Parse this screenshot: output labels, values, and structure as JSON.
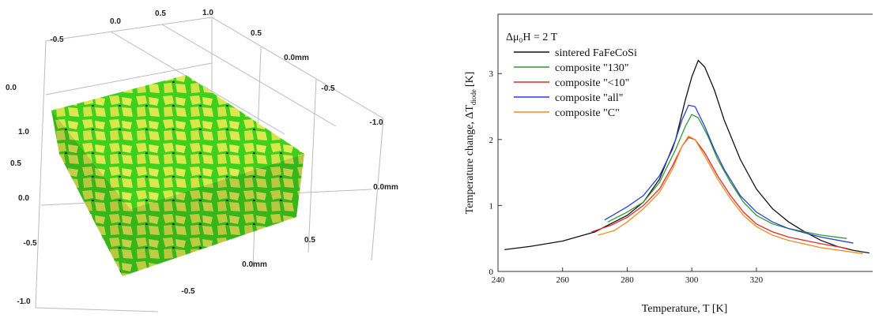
{
  "volume_render": {
    "tick_labels": [
      "-0.5",
      "0.0",
      "0.5",
      "1.0",
      "0.5",
      "0.0mm",
      "-0.5",
      "-1.0",
      "0.0",
      "1.0",
      "0.5",
      "0.0",
      "-0.5",
      "-1.0",
      "0.5",
      "0.0mm",
      "-0.5",
      "0.0mm"
    ]
  },
  "chart_data": {
    "type": "line",
    "annotation": "Δμ₀H = 2 T",
    "xlabel": "Temperature, T [K]",
    "ylabel": "Temperature change, ΔT",
    "ylabel_subscript": "diode",
    "ylabel_unit": "[K]",
    "xlim": [
      240,
      356
    ],
    "xticks": [
      240,
      260,
      280,
      300,
      320
    ],
    "ylim": [
      0,
      3.9
    ],
    "yticks": [
      0,
      1,
      2,
      3
    ],
    "series": [
      {
        "name": "sintered FaFeCoSi",
        "color": "#111111",
        "x": [
          242,
          250,
          260,
          270,
          280,
          285,
          290,
          295,
          298,
          300,
          302,
          304,
          307,
          310,
          315,
          320,
          325,
          330,
          335,
          340,
          345,
          350,
          355
        ],
        "values": [
          0.33,
          0.38,
          0.46,
          0.6,
          0.85,
          1.05,
          1.4,
          2.0,
          2.6,
          2.95,
          3.2,
          3.1,
          2.75,
          2.3,
          1.7,
          1.25,
          0.95,
          0.75,
          0.6,
          0.47,
          0.38,
          0.32,
          0.28
        ]
      },
      {
        "name": "composite \"130\"",
        "color": "#2e9a2e",
        "x": [
          274,
          280,
          285,
          290,
          295,
          298,
          300,
          302,
          305,
          308,
          312,
          316,
          320,
          325,
          330,
          340,
          348
        ],
        "values": [
          0.75,
          0.9,
          1.05,
          1.35,
          1.85,
          2.2,
          2.38,
          2.33,
          2.05,
          1.7,
          1.35,
          1.05,
          0.85,
          0.72,
          0.65,
          0.55,
          0.5
        ]
      },
      {
        "name": "composite \"<10\"",
        "color": "#e02a2a",
        "x": [
          269,
          275,
          280,
          285,
          290,
          294,
          297,
          299,
          301,
          304,
          308,
          312,
          316,
          320,
          325,
          330,
          340,
          348
        ],
        "values": [
          0.6,
          0.7,
          0.82,
          1.0,
          1.25,
          1.6,
          1.9,
          2.03,
          2.0,
          1.8,
          1.45,
          1.15,
          0.9,
          0.72,
          0.6,
          0.52,
          0.42,
          0.35
        ]
      },
      {
        "name": "composite \"all\"",
        "color": "#2a3fd8",
        "x": [
          273,
          280,
          285,
          290,
          294,
          297,
          299,
          301,
          304,
          307,
          310,
          315,
          320,
          325,
          330,
          340,
          350
        ],
        "values": [
          0.78,
          0.98,
          1.15,
          1.45,
          1.85,
          2.3,
          2.52,
          2.5,
          2.2,
          1.85,
          1.55,
          1.15,
          0.9,
          0.75,
          0.65,
          0.52,
          0.43
        ]
      },
      {
        "name": "composite \"C\"",
        "color": "#f08a1c",
        "x": [
          271,
          276,
          280,
          285,
          290,
          294,
          297,
          299,
          301,
          304,
          308,
          312,
          316,
          320,
          325,
          330,
          340,
          353
        ],
        "values": [
          0.55,
          0.62,
          0.75,
          0.95,
          1.2,
          1.55,
          1.9,
          2.05,
          2.0,
          1.75,
          1.4,
          1.1,
          0.85,
          0.68,
          0.55,
          0.47,
          0.36,
          0.27
        ]
      }
    ]
  }
}
